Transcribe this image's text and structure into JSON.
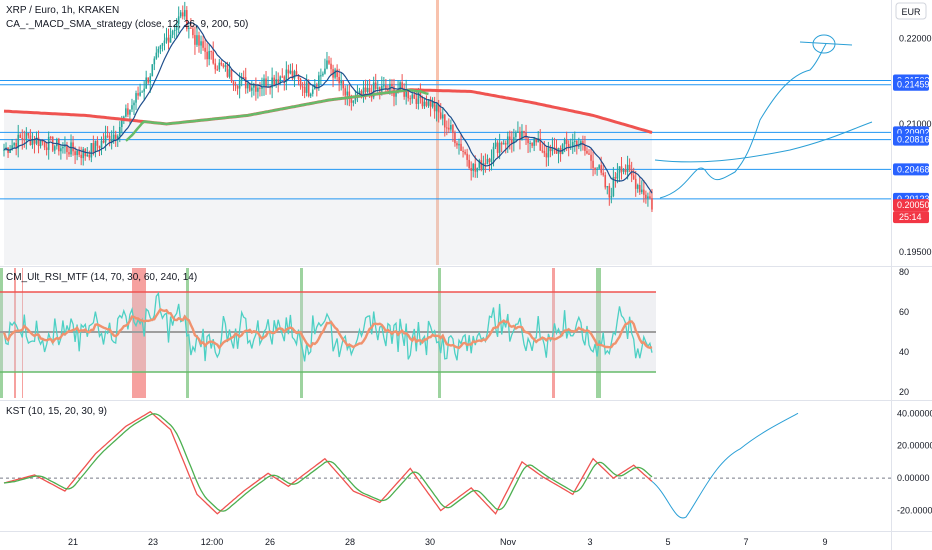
{
  "header": {
    "symbol": "XRP / Euro, 1h, KRAKEN",
    "currency_button": "EUR",
    "strategy_label": "CA_-_MACD_SMA_strategy (close, 12, 26, 9, 200, 50)"
  },
  "colors": {
    "up": "#26a69a",
    "down": "#ef5350",
    "sma200": "#ef5350",
    "sma50": "#66bb6a",
    "ema_blue": "#1e4e8c",
    "hline": "#2196f3",
    "tag_blue": "#2962ff",
    "tag_red": "#f23645",
    "drawing": "#2a9fd6",
    "rsi_teal": "#4dd0c4",
    "rsi_orange": "#f0926e",
    "kst_red": "#ef5350",
    "kst_green": "#4caf50"
  },
  "chart_data": [
    {
      "type": "candlestick",
      "title": "XRP / Euro, 1h, KRAKEN",
      "ylim": [
        0.1935,
        0.2245
      ],
      "price_axis_ticks": [
        "0.22000",
        "0.21000",
        "0.19500"
      ],
      "price_tags": [
        {
          "value": "0.21508",
          "color": "blue"
        },
        {
          "value": "0.21459",
          "color": "blue"
        },
        {
          "value": "0.20902",
          "color": "blue"
        },
        {
          "value": "0.20816",
          "color": "blue"
        },
        {
          "value": "0.20468",
          "color": "blue"
        },
        {
          "value": "0.20123",
          "color": "blue"
        },
        {
          "value": "0.20050",
          "color": "red"
        }
      ],
      "countdown": "25:14",
      "horizontal_lines": [
        0.21508,
        0.21459,
        0.20902,
        0.20816,
        0.20468,
        0.20123
      ]
    },
    {
      "type": "line",
      "title": "CM_Ult_RSI_MTF (14, 70, 30, 60, 240, 14)",
      "ylim": [
        17,
        82
      ],
      "axis_ticks": [
        "80",
        "60",
        "40",
        "20"
      ],
      "levels": [
        70,
        50,
        30
      ]
    },
    {
      "type": "line",
      "title": "KST (10, 15, 20, 30, 9)",
      "ylim": [
        -32,
        47
      ],
      "axis_ticks": [
        "40.00000",
        "20.00000",
        "0.00000",
        "-20.00000"
      ]
    }
  ],
  "x_axis": {
    "labels": [
      "21",
      "23",
      "12:00",
      "26",
      "28",
      "30",
      "Nov",
      "3",
      "5",
      "7",
      "9"
    ]
  }
}
